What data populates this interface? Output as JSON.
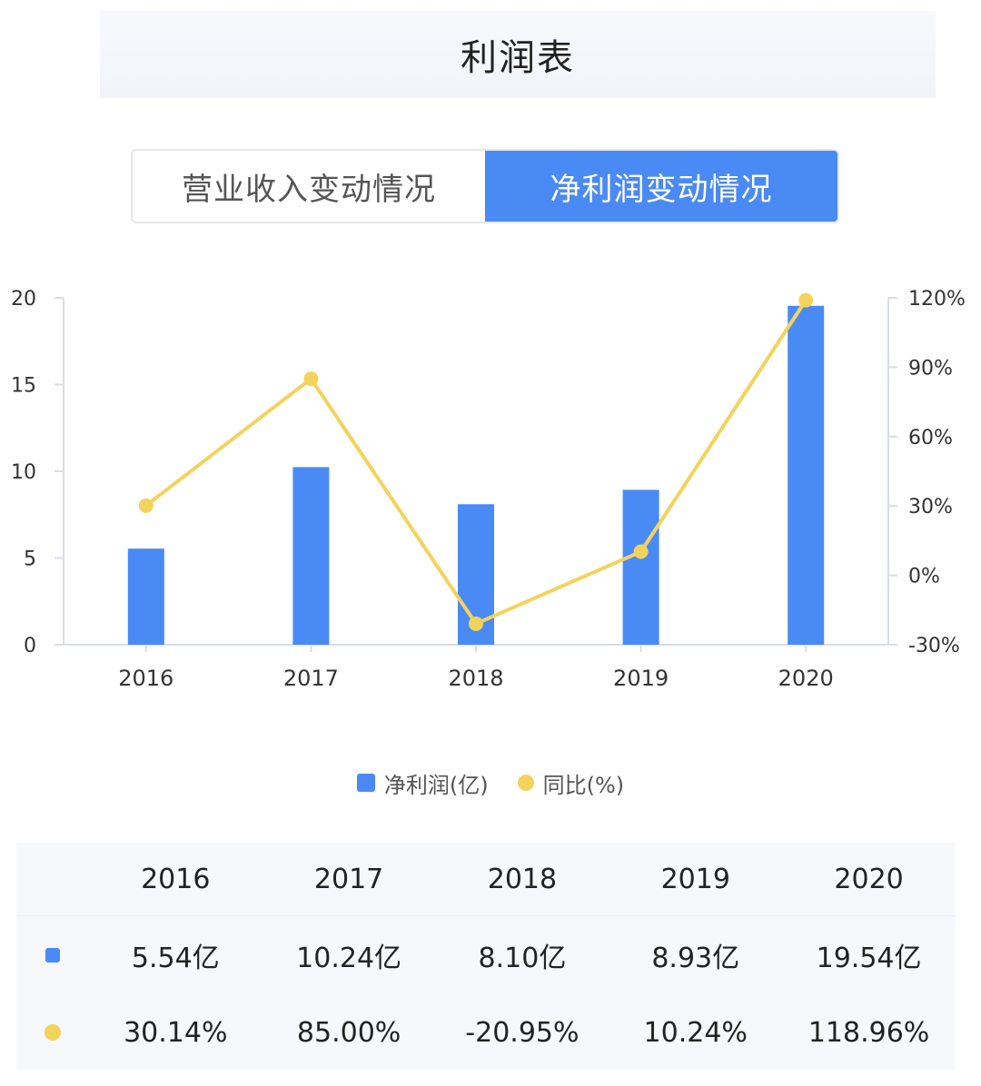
{
  "header": {
    "title": "利润表"
  },
  "tabs": [
    {
      "label": "营业收入变动情况",
      "active": false
    },
    {
      "label": "净利润变动情况",
      "active": true
    }
  ],
  "chart_data": {
    "type": "bar+line",
    "categories": [
      "2016",
      "2017",
      "2018",
      "2019",
      "2020"
    ],
    "series": [
      {
        "name": "净利润(亿)",
        "type": "bar",
        "axis": "left",
        "color": "#4a8af4",
        "values": [
          5.54,
          10.24,
          8.1,
          8.93,
          19.54
        ]
      },
      {
        "name": "同比(%)",
        "type": "line",
        "axis": "right",
        "color": "#f3d35c",
        "values": [
          30.14,
          85.0,
          -20.95,
          10.24,
          118.96
        ]
      }
    ],
    "y_left": {
      "min": 0,
      "max": 20,
      "ticks": [
        "0",
        "5",
        "10",
        "15",
        "20"
      ]
    },
    "y_right": {
      "min": -30,
      "max": 120,
      "ticks": [
        "-30%",
        "0%",
        "30%",
        "60%",
        "90%",
        "120%"
      ]
    },
    "legend_position": "bottom",
    "grid": false
  },
  "legend": [
    {
      "label": "净利润(亿)"
    },
    {
      "label": "同比(%)"
    }
  ],
  "table": {
    "years": [
      "2016",
      "2017",
      "2018",
      "2019",
      "2020"
    ],
    "profit": [
      "5.54亿",
      "10.24亿",
      "8.10亿",
      "8.93亿",
      "19.54亿"
    ],
    "yoy": [
      "30.14%",
      "85.00%",
      "-20.95%",
      "10.24%",
      "118.96%"
    ]
  }
}
